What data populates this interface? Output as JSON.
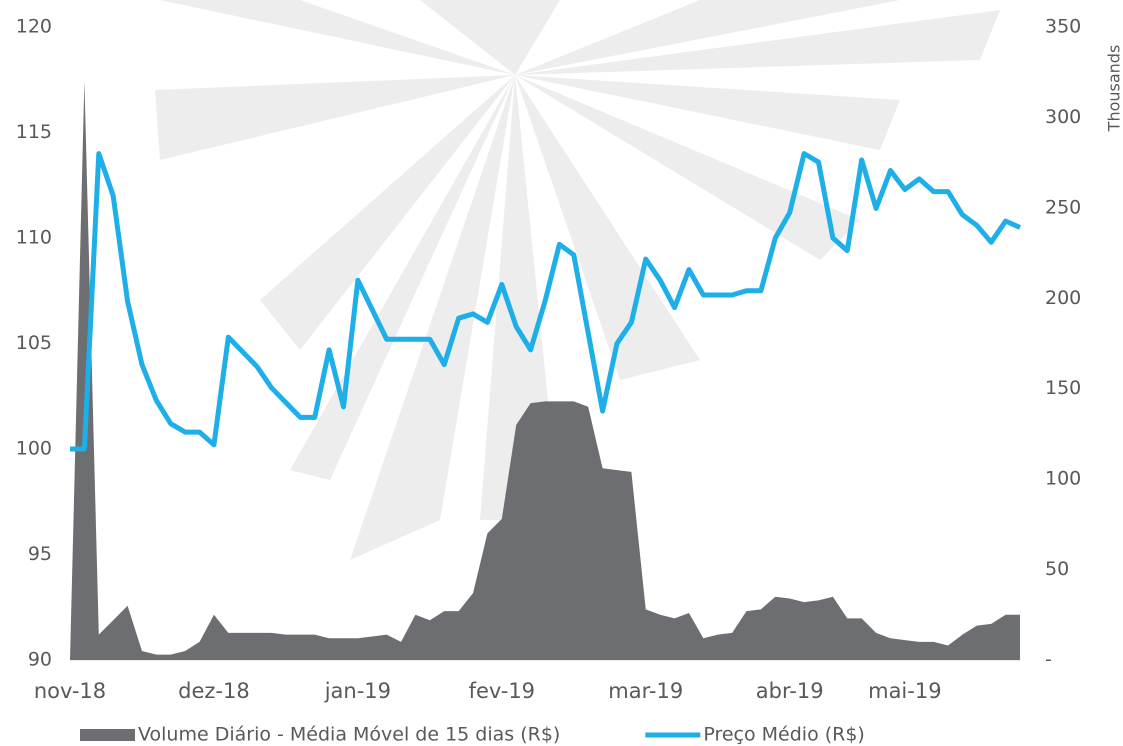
{
  "chart_data": {
    "type": "line",
    "categories": [
      "nov-18",
      null,
      null,
      null,
      null,
      null,
      null,
      null,
      null,
      null,
      "dez-18",
      null,
      null,
      null,
      null,
      null,
      null,
      null,
      null,
      null,
      "jan-19",
      null,
      null,
      null,
      null,
      null,
      null,
      null,
      null,
      null,
      "fev-19",
      null,
      null,
      null,
      null,
      null,
      null,
      null,
      null,
      null,
      "mar-19",
      null,
      null,
      null,
      null,
      null,
      null,
      null,
      null,
      null,
      "abr-19",
      null,
      null,
      null,
      null,
      null,
      null,
      null,
      "mai-19",
      null,
      null,
      null,
      null,
      null,
      null,
      null,
      null
    ],
    "series": [
      {
        "name": "Volume Diário - Média Móvel de 15 dias (R$)",
        "type": "area",
        "axis": "y2",
        "color": "#6d6e71",
        "values": [
          0,
          320,
          14,
          22,
          30,
          5,
          3,
          3,
          5,
          10,
          25,
          15,
          15,
          15,
          15,
          14,
          14,
          14,
          12,
          12,
          12,
          13,
          14,
          10,
          25,
          22,
          27,
          27,
          37,
          70,
          78,
          130,
          142,
          143,
          143,
          143,
          140,
          106,
          105,
          104,
          28,
          25,
          23,
          26,
          12,
          14,
          15,
          27,
          28,
          35,
          34,
          32,
          33,
          35,
          23,
          23,
          15,
          12,
          11,
          10,
          10,
          8,
          14,
          19,
          20,
          25,
          25
        ]
      },
      {
        "name": "Preço Médio (R$)",
        "type": "line",
        "color": "#1eaee8",
        "values": [
          100,
          100,
          114,
          112,
          107,
          104,
          102.3,
          101.2,
          100.8,
          100.8,
          100.2,
          105.3,
          104.6,
          103.9,
          102.9,
          102.2,
          101.5,
          101.5,
          104.7,
          102,
          108,
          106.6,
          105.2,
          105.2,
          105.2,
          105.2,
          104,
          106.2,
          106.4,
          106,
          107.8,
          105.8,
          104.7,
          107,
          109.7,
          109.2,
          105.5,
          101.8,
          105,
          106,
          109,
          108,
          106.7,
          108.5,
          107.3,
          107.3,
          107.3,
          107.5,
          107.5,
          110,
          111.2,
          114,
          113.6,
          110,
          109.4,
          113.7,
          111.4,
          113.2,
          112.3,
          112.8,
          112.2,
          112.2,
          111.1,
          110.6,
          109.8,
          110.8,
          110.5
        ]
      }
    ],
    "ylim": [
      90,
      120
    ],
    "yticks": [
      90,
      95,
      100,
      105,
      110,
      115,
      120
    ],
    "y2lim": [
      0,
      350
    ],
    "y2ticks": [
      {
        "value": 0,
        "label": "-"
      },
      50,
      100,
      150,
      200,
      250,
      300,
      350
    ],
    "y2label": "Thousands",
    "legend": "bottom"
  }
}
